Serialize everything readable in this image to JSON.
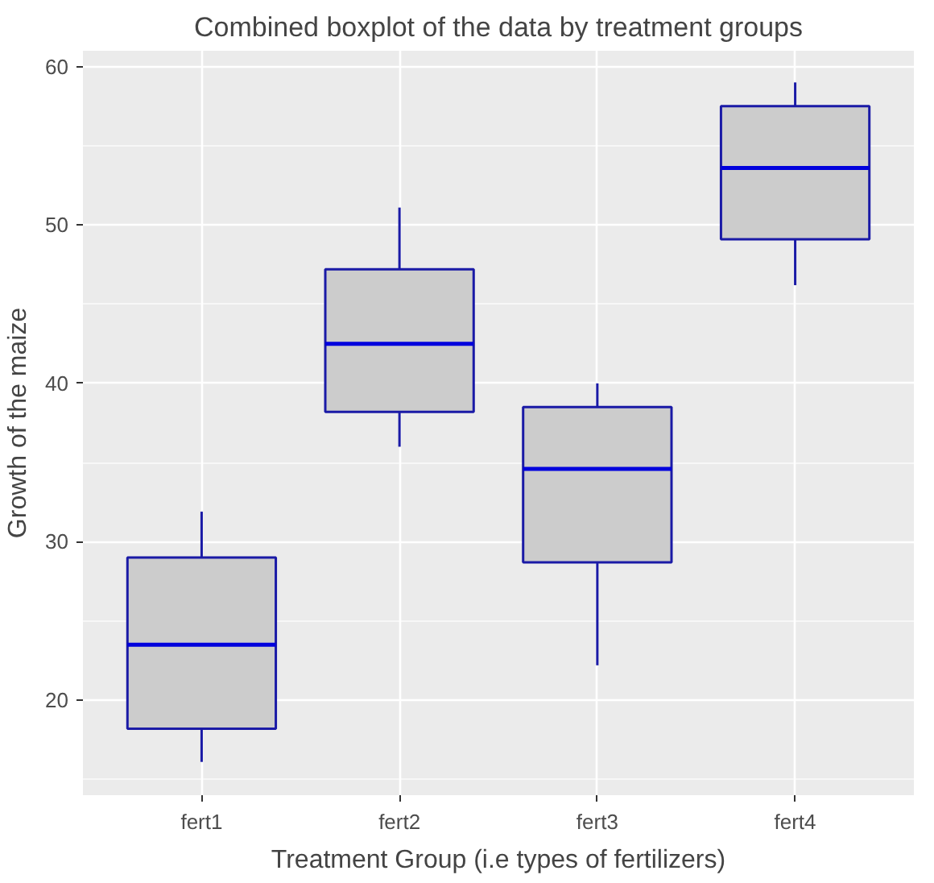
{
  "chart_data": {
    "type": "box",
    "title": "Combined boxplot of the data by treatment groups",
    "xlabel": "Treatment Group (i.e types of fertilizers)",
    "ylabel": "Growth of the maize",
    "categories": [
      "fert1",
      "fert2",
      "fert3",
      "fert4"
    ],
    "boxes": [
      {
        "low": 16.1,
        "q1": 18.2,
        "median": 23.5,
        "q3": 29.0,
        "high": 31.9
      },
      {
        "low": 36.0,
        "q1": 38.2,
        "median": 42.5,
        "q3": 47.2,
        "high": 51.1
      },
      {
        "low": 22.2,
        "q1": 28.7,
        "median": 34.6,
        "q3": 38.5,
        "high": 40.0
      },
      {
        "low": 46.2,
        "q1": 49.1,
        "median": 53.6,
        "q3": 57.5,
        "high": 59.0
      }
    ],
    "color": "#cccccc",
    "ylim": [
      14,
      61
    ],
    "yticks": [
      20,
      30,
      40,
      50,
      60
    ],
    "grid": true
  }
}
